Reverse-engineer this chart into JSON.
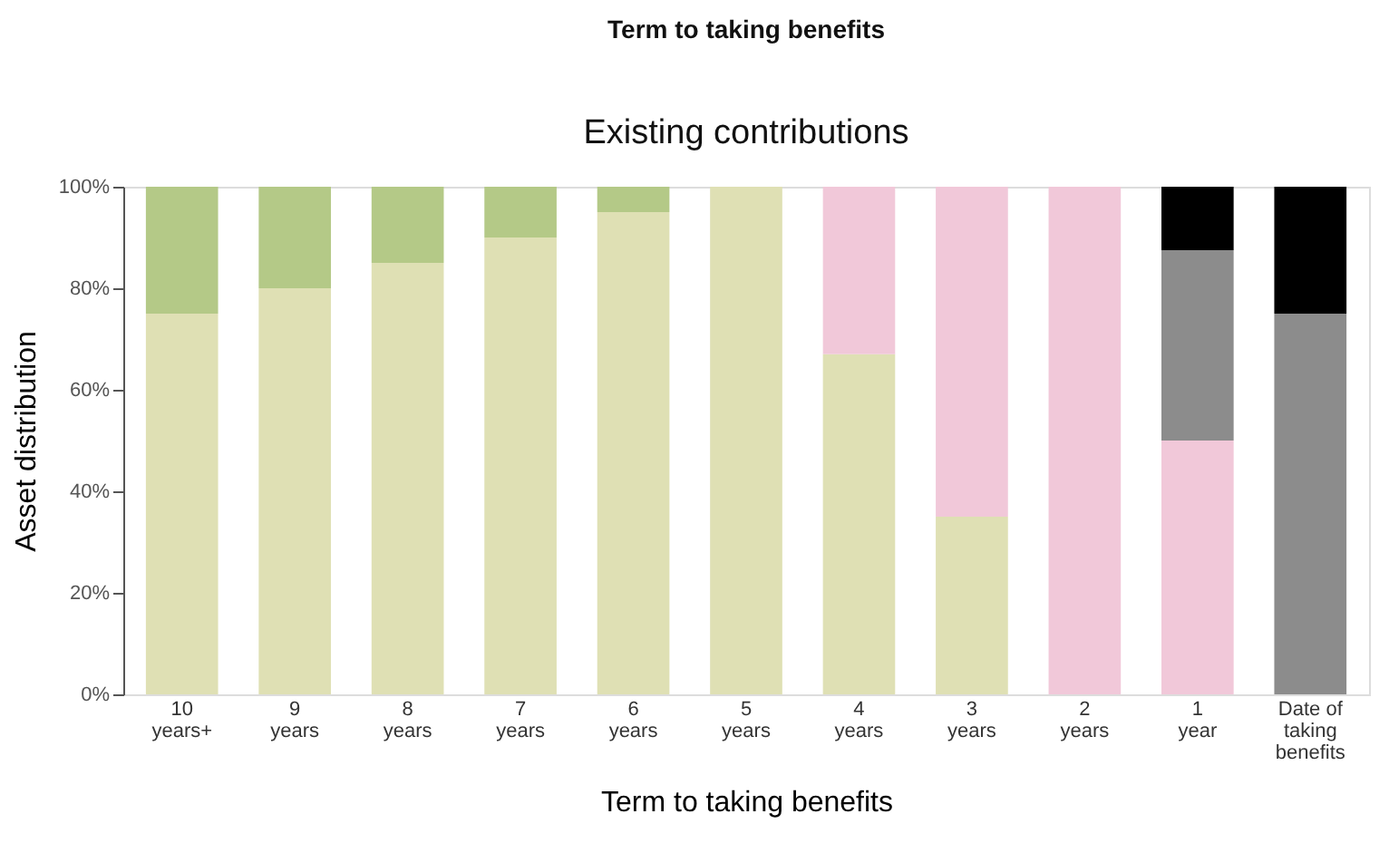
{
  "chart_data": {
    "type": "bar",
    "stacked": true,
    "title": "Existing contributions",
    "xlabel": "Term to taking benefits",
    "ylabel": "Asset distribution",
    "annotations": [
      "Term to taking benefits"
    ],
    "categories": [
      "10\nyears+",
      "9\nyears",
      "8\nyears",
      "7\nyears",
      "6\nyears",
      "5\nyears",
      "4\nyears",
      "3\nyears",
      "2\nyears",
      "1\nyear",
      "Date of\ntaking\nbenefits"
    ],
    "series": [
      {
        "color": "#dfe0b4",
        "values": [
          75,
          80,
          85,
          90,
          95,
          100,
          67,
          35,
          null,
          null,
          null
        ]
      },
      {
        "color": "#b4c987",
        "values": [
          25,
          20,
          15,
          10,
          5,
          null,
          null,
          null,
          null,
          null,
          null
        ]
      },
      {
        "color": "#f1c8d9",
        "values": [
          null,
          null,
          null,
          null,
          null,
          null,
          33,
          65,
          100,
          50,
          null
        ]
      },
      {
        "color": "#8c8c8c",
        "values": [
          null,
          null,
          null,
          null,
          null,
          null,
          null,
          null,
          null,
          37.5,
          75
        ]
      },
      {
        "color": "#000000",
        "values": [
          null,
          null,
          null,
          null,
          null,
          null,
          null,
          null,
          null,
          12.5,
          25
        ]
      }
    ],
    "ylim": [
      0,
      100
    ],
    "yticks": [
      {
        "value": 0,
        "label": "0%"
      },
      {
        "value": 20,
        "label": "20%"
      },
      {
        "value": 40,
        "label": "40%"
      },
      {
        "value": 60,
        "label": "60%"
      },
      {
        "value": 80,
        "label": "80%"
      },
      {
        "value": 100,
        "label": "100%"
      }
    ],
    "grid": false,
    "legend": false
  }
}
